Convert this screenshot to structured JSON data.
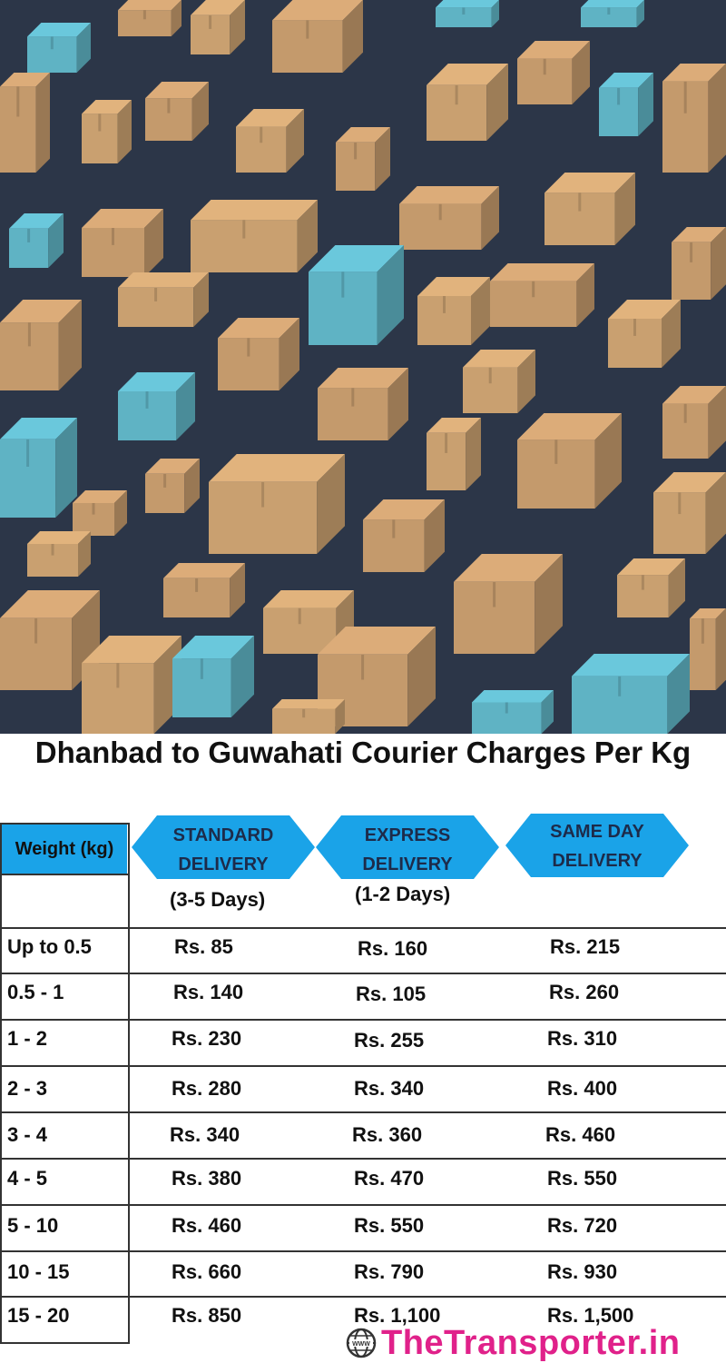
{
  "title": "Dhanbad to Guwahati Courier Charges Per Kg",
  "table": {
    "weight_header": "Weight (kg)",
    "columns": [
      {
        "label_line1": "STANDARD",
        "label_line2": "DELIVERY",
        "duration": "(3-5 Days)"
      },
      {
        "label_line1": "EXPRESS",
        "label_line2": "DELIVERY",
        "duration": "(1-2 Days)"
      },
      {
        "label_line1": "SAME DAY",
        "label_line2": "DELIVERY",
        "duration": ""
      }
    ],
    "rows": [
      {
        "weight": "Up to 0.5",
        "standard": "Rs. 85",
        "express": "Rs. 160",
        "same_day": "Rs. 215"
      },
      {
        "weight": "0.5 - 1",
        "standard": "Rs. 140",
        "express": "Rs. 105",
        "same_day": "Rs. 260"
      },
      {
        "weight": "1 - 2",
        "standard": "Rs. 230",
        "express": "Rs. 255",
        "same_day": "Rs. 310"
      },
      {
        "weight": "2 - 3",
        "standard": "Rs. 280",
        "express": "Rs. 340",
        "same_day": "Rs. 400"
      },
      {
        "weight": "3 - 4",
        "standard": "Rs. 340",
        "express": "Rs. 360",
        "same_day": "Rs. 460"
      },
      {
        "weight": "4 - 5",
        "standard": "Rs. 380",
        "express": "Rs. 470",
        "same_day": "Rs. 550"
      },
      {
        "weight": "5 - 10",
        "standard": "Rs. 460",
        "express": "Rs. 550",
        "same_day": "Rs. 720"
      },
      {
        "weight": "10 - 15",
        "standard": "Rs. 660",
        "express": "Rs. 790",
        "same_day": "Rs. 930"
      },
      {
        "weight": "15 - 20",
        "standard": "Rs. 850",
        "express": "Rs. 1,100",
        "same_day": "Rs. 1,500"
      }
    ]
  },
  "brand": {
    "name": "TheTransporter.in",
    "icon": "globe-www-icon"
  },
  "colors": {
    "header_blue": "#1aa3e8",
    "hexagon_blue": "#1aa3e8",
    "brand_pink": "#e0218a",
    "hero_bg": "#2c3648"
  },
  "hero": {
    "description_icon": "cardboard-boxes-illustration"
  }
}
